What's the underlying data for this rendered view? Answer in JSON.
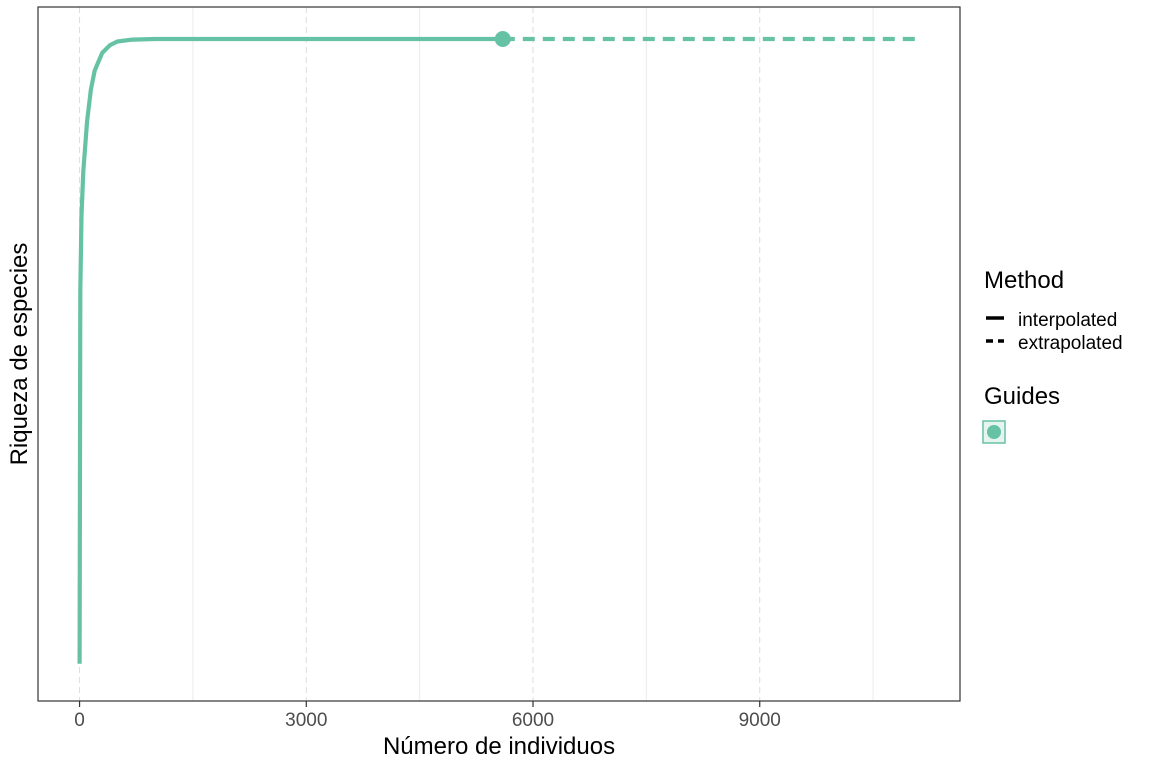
{
  "chart_data": {
    "type": "line",
    "xlabel": "Número de individuos",
    "ylabel": "Riqueza de especies",
    "xlim": [
      -550,
      11650
    ],
    "ylim": [
      0,
      100
    ],
    "x_ticks": [
      0,
      3000,
      6000,
      9000
    ],
    "x_tick_labels": [
      "0",
      "3000",
      "6000",
      "9000"
    ],
    "x_minor_ticks": [
      1500,
      4500,
      7500,
      10500
    ],
    "grid": true,
    "y_tick_labels_shown": false,
    "series": [
      {
        "method": "interpolated",
        "x": [
          1,
          10,
          25,
          50,
          100,
          150,
          200,
          300,
          400,
          500,
          700,
          1000,
          2000,
          3000,
          4000,
          5000,
          5600
        ],
        "y": [
          1,
          60,
          72,
          79,
          87,
          92,
          95,
          97.8,
          99,
          99.6,
          99.9,
          100,
          100,
          100,
          100,
          100,
          100
        ]
      },
      {
        "method": "extrapolated",
        "x": [
          5600,
          7000,
          9000,
          11150
        ],
        "y": [
          100,
          100,
          100,
          100
        ]
      }
    ],
    "observed_point": {
      "x": 5600,
      "y": 100
    },
    "series_color": "#66c2a5",
    "legend": {
      "placement": "right",
      "method": {
        "title": "Method",
        "items": [
          "interpolated",
          "extrapolated"
        ]
      },
      "guides": {
        "title": "Guides"
      }
    }
  }
}
